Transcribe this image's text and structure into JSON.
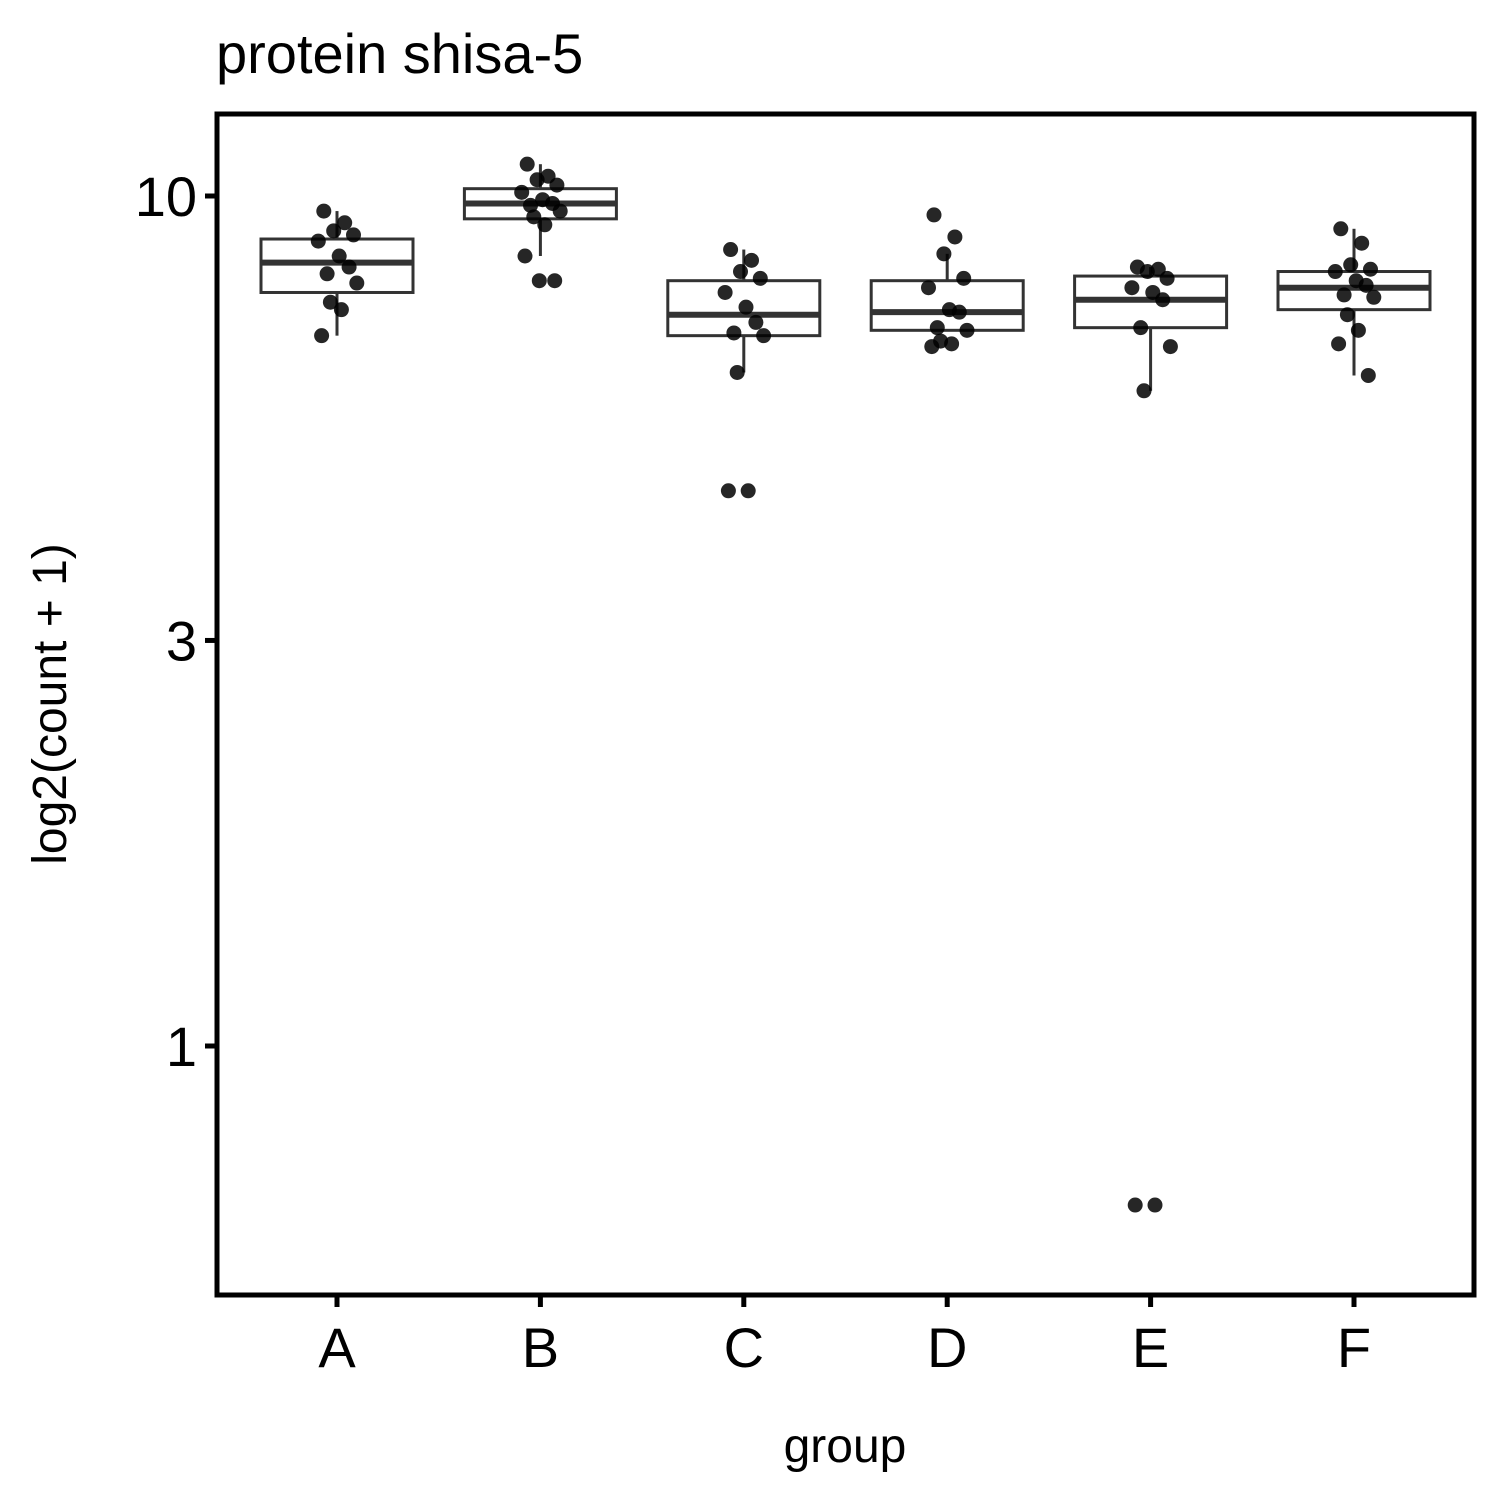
{
  "chart_data": {
    "type": "box",
    "title": "protein shisa-5",
    "xlabel": "group",
    "ylabel": "log2(count + 1)",
    "y_scale": "log",
    "ylim": [
      0.6,
      12
    ],
    "y_ticks": [
      {
        "value": 10,
        "label": "10"
      },
      {
        "value": 3,
        "label": "3"
      },
      {
        "value": 1,
        "label": "1"
      }
    ],
    "categories": [
      "A",
      "B",
      "C",
      "D",
      "E",
      "F"
    ],
    "boxes": [
      {
        "group": "A",
        "q1": 7.7,
        "median": 8.35,
        "q3": 8.9,
        "whisker_low": 6.85,
        "whisker_high": 9.6
      },
      {
        "group": "B",
        "q1": 9.4,
        "median": 9.8,
        "q3": 10.2,
        "whisker_low": 8.5,
        "whisker_high": 10.9
      },
      {
        "group": "C",
        "q1": 6.85,
        "median": 7.25,
        "q3": 7.95,
        "whisker_low": 6.2,
        "whisker_high": 8.65
      },
      {
        "group": "D",
        "q1": 6.95,
        "median": 7.3,
        "q3": 7.95,
        "whisker_low": 6.95,
        "whisker_high": 8.55
      },
      {
        "group": "E",
        "q1": 7.0,
        "median": 7.55,
        "q3": 8.05,
        "whisker_low": 5.9,
        "whisker_high": 8.25
      },
      {
        "group": "F",
        "q1": 7.35,
        "median": 7.8,
        "q3": 8.15,
        "whisker_low": 6.15,
        "whisker_high": 9.15
      }
    ],
    "points": [
      {
        "group": "A",
        "values": [
          9.6,
          9.3,
          9.1,
          9.0,
          8.85,
          8.5,
          8.25,
          8.1,
          7.9,
          7.5,
          7.35,
          6.85
        ]
      },
      {
        "group": "B",
        "values": [
          10.9,
          10.55,
          10.45,
          10.3,
          10.1,
          9.9,
          9.8,
          9.75,
          9.6,
          9.45,
          9.25,
          8.5,
          7.95,
          7.95
        ]
      },
      {
        "group": "C",
        "values": [
          8.65,
          8.4,
          8.15,
          8.0,
          7.7,
          7.4,
          7.1,
          6.9,
          6.85,
          6.2,
          4.5,
          4.5
        ]
      },
      {
        "group": "D",
        "values": [
          9.5,
          8.95,
          8.55,
          8.0,
          7.8,
          7.35,
          7.3,
          7.0,
          6.95,
          6.75,
          6.7,
          6.65
        ]
      },
      {
        "group": "E",
        "values": [
          8.25,
          8.2,
          8.15,
          8.0,
          7.8,
          7.7,
          7.55,
          7.0,
          6.65,
          5.9,
          0.65,
          0.65
        ]
      },
      {
        "group": "F",
        "values": [
          9.15,
          8.8,
          8.3,
          8.2,
          8.15,
          7.95,
          7.85,
          7.65,
          7.6,
          7.25,
          6.95,
          6.7,
          6.15
        ]
      }
    ]
  }
}
